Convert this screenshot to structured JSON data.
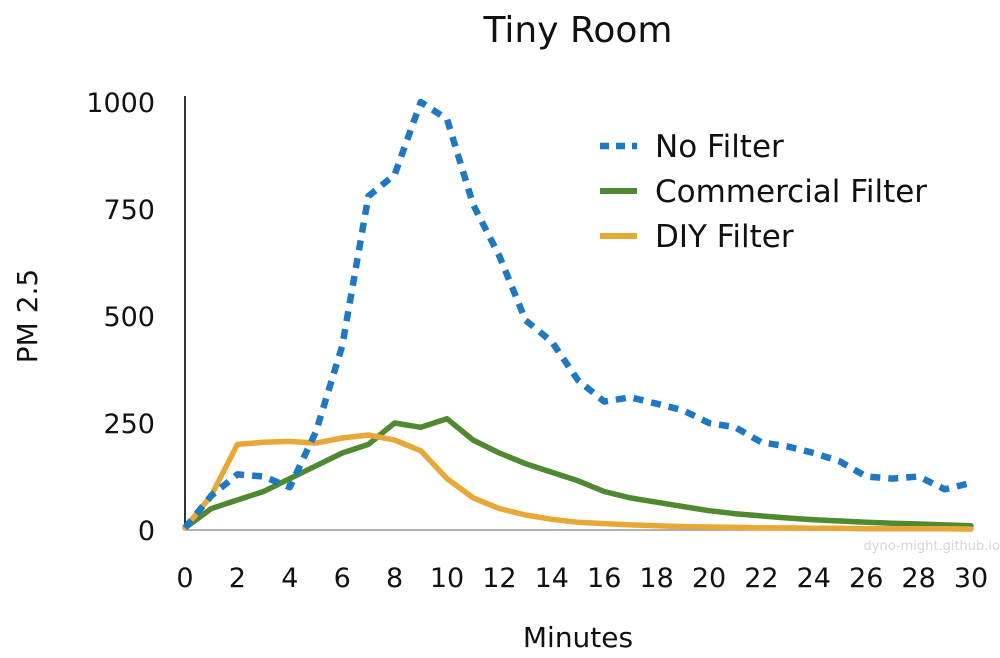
{
  "chart_data": {
    "type": "line",
    "title": "Tiny Room",
    "xlabel": "Minutes",
    "ylabel": "PM 2.5",
    "xlim": [
      0,
      30
    ],
    "ylim": [
      0,
      1000
    ],
    "x_ticks": [
      "0",
      "2",
      "4",
      "6",
      "8",
      "10",
      "12",
      "14",
      "16",
      "18",
      "20",
      "22",
      "24",
      "26",
      "28",
      "30"
    ],
    "y_ticks": [
      "0",
      "250",
      "500",
      "750",
      "1000"
    ],
    "grid": false,
    "legend_position": "top-right",
    "x": [
      0,
      1,
      2,
      3,
      4,
      5,
      6,
      7,
      8,
      9,
      10,
      11,
      12,
      13,
      14,
      15,
      16,
      17,
      18,
      19,
      20,
      21,
      22,
      23,
      24,
      25,
      26,
      27,
      28,
      29,
      30
    ],
    "series": [
      {
        "name": "No Filter",
        "color": "#1f78c1",
        "style": "dotted",
        "values": [
          5,
          80,
          130,
          125,
          100,
          230,
          430,
          780,
          830,
          1000,
          960,
          760,
          640,
          490,
          440,
          350,
          300,
          310,
          295,
          280,
          250,
          240,
          205,
          195,
          180,
          160,
          125,
          120,
          125,
          95,
          110
        ]
      },
      {
        "name": "Commercial Filter",
        "color": "#4f8a32",
        "style": "solid",
        "values": [
          5,
          50,
          70,
          90,
          120,
          150,
          180,
          200,
          250,
          240,
          260,
          210,
          180,
          155,
          135,
          115,
          90,
          75,
          65,
          55,
          45,
          38,
          33,
          28,
          24,
          21,
          18,
          16,
          14,
          12,
          10
        ]
      },
      {
        "name": "DIY Filter",
        "color": "#e8a838",
        "style": "solid",
        "values": [
          5,
          80,
          200,
          205,
          207,
          203,
          215,
          222,
          210,
          185,
          120,
          75,
          50,
          35,
          25,
          18,
          15,
          12,
          10,
          8,
          7,
          6,
          5,
          5,
          4,
          4,
          3,
          3,
          3,
          3,
          2
        ]
      }
    ]
  },
  "watermark": "dyno-might.github.io"
}
